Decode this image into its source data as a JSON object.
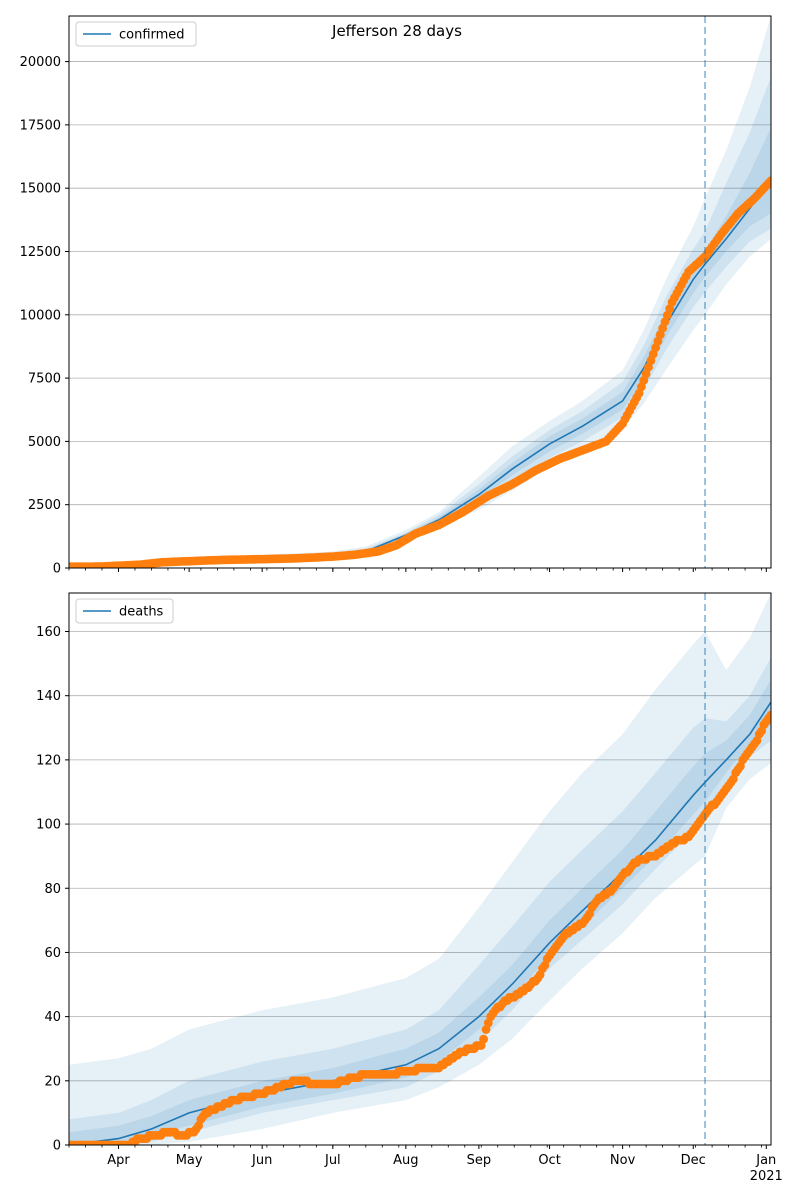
{
  "title": "Jefferson 28 days",
  "colors": {
    "model": "#1f77b4",
    "observed": "#ff7f0e",
    "band": "#1f77b4",
    "grid": "#b0b0b0"
  },
  "chart_data": [
    {
      "type": "line",
      "legend": "confirmed",
      "legend_loc": "upper-left",
      "grid": "y",
      "xlim": [
        "2020-03-11",
        "2021-01-03"
      ],
      "ylim": [
        0,
        21800
      ],
      "yticks": [
        0,
        2500,
        5000,
        7500,
        10000,
        12500,
        15000,
        17500,
        20000
      ],
      "ytick_labels": [
        "0",
        "2500",
        "5000",
        "7500",
        "10000",
        "12500",
        "15000",
        "17500",
        "20000"
      ],
      "forecast_start": "2020-12-06",
      "model": {
        "x": [
          "2020-03-11",
          "2020-04-01",
          "2020-05-01",
          "2020-06-01",
          "2020-07-01",
          "2020-07-15",
          "2020-08-01",
          "2020-08-15",
          "2020-09-01",
          "2020-09-15",
          "2020-10-01",
          "2020-10-15",
          "2020-11-01",
          "2020-11-10",
          "2020-11-20",
          "2020-12-01",
          "2020-12-06",
          "2020-12-15",
          "2020-12-25",
          "2021-01-03"
        ],
        "y": [
          50,
          80,
          250,
          380,
          480,
          650,
          1300,
          1900,
          2900,
          3900,
          4900,
          5600,
          6600,
          7900,
          9700,
          11400,
          12000,
          13000,
          14200,
          15400
        ],
        "bands": [
          {
            "lo": [
              0,
              40,
              150,
              250,
              330,
              450,
              1150,
              1600,
              2300,
              3050,
              4000,
              4600,
              5500,
              6500,
              7900,
              9400,
              10000,
              11200,
              12300,
              13000
            ],
            "hi": [
              120,
              150,
              370,
              520,
              650,
              850,
              1500,
              2200,
              3600,
              4800,
              5800,
              6600,
              7800,
              9400,
              11500,
              13500,
              14600,
              16500,
              19000,
              21800
            ]
          },
          {
            "lo": [
              10,
              55,
              190,
              300,
              390,
              540,
              1220,
              1720,
              2550,
              3400,
              4350,
              5000,
              5950,
              7050,
              8700,
              10300,
              10900,
              11900,
              12900,
              13400
            ],
            "hi": [
              90,
              120,
              320,
              460,
              580,
              770,
              1400,
              2100,
              3300,
              4400,
              5450,
              6200,
              7350,
              8800,
              10800,
              12600,
              13300,
              15200,
              17200,
              19400
            ]
          },
          {
            "lo": [
              25,
              65,
              215,
              335,
              430,
              590,
              1260,
              1800,
              2720,
              3650,
              4600,
              5300,
              6250,
              7450,
              9200,
              10850,
              11500,
              12500,
              13500,
              14000
            ],
            "hi": [
              75,
              100,
              290,
              425,
              535,
              715,
              1350,
              2000,
              3100,
              4150,
              5200,
              5900,
              6950,
              8350,
              10200,
              11950,
              12500,
              13900,
              15600,
              17400
            ]
          }
        ]
      },
      "observed": {
        "x": [
          "2020-03-11",
          "2020-03-25",
          "2020-04-10",
          "2020-04-20",
          "2020-05-01",
          "2020-05-15",
          "2020-06-01",
          "2020-06-15",
          "2020-07-01",
          "2020-07-10",
          "2020-07-20",
          "2020-07-28",
          "2020-08-05",
          "2020-08-15",
          "2020-08-25",
          "2020-09-05",
          "2020-09-15",
          "2020-09-25",
          "2020-10-05",
          "2020-10-15",
          "2020-10-25",
          "2020-11-01",
          "2020-11-08",
          "2020-11-15",
          "2020-11-22",
          "2020-11-29",
          "2020-12-06",
          "2020-12-13",
          "2020-12-20",
          "2020-12-27",
          "2021-01-03"
        ],
        "y": [
          50,
          60,
          130,
          230,
          270,
          320,
          350,
          380,
          450,
          520,
          650,
          900,
          1350,
          1700,
          2200,
          2850,
          3300,
          3850,
          4300,
          4650,
          5000,
          5700,
          6900,
          8700,
          10500,
          11700,
          12300,
          13200,
          14000,
          14600,
          15300
        ]
      }
    },
    {
      "type": "line",
      "legend": "deaths",
      "legend_loc": "upper-left",
      "grid": "y",
      "xlim": [
        "2020-03-11",
        "2021-01-03"
      ],
      "ylim": [
        0,
        172
      ],
      "yticks": [
        0,
        20,
        40,
        60,
        80,
        100,
        120,
        140,
        160
      ],
      "ytick_labels": [
        "0",
        "20",
        "40",
        "60",
        "80",
        "100",
        "120",
        "140",
        "160"
      ],
      "xticks": [
        "2020-04-01",
        "2020-05-01",
        "2020-06-01",
        "2020-07-01",
        "2020-08-01",
        "2020-09-01",
        "2020-10-01",
        "2020-11-01",
        "2020-12-01",
        "2021-01-01"
      ],
      "xtick_labels": [
        "Apr",
        "May",
        "Jun",
        "Jul",
        "Aug",
        "Sep",
        "Oct",
        "Nov",
        "Dec",
        "Jan"
      ],
      "xlabel_year": "2021",
      "forecast_start": "2020-12-06",
      "model": {
        "x": [
          "2020-03-11",
          "2020-04-01",
          "2020-04-15",
          "2020-05-01",
          "2020-06-01",
          "2020-07-01",
          "2020-08-01",
          "2020-08-15",
          "2020-09-01",
          "2020-09-15",
          "2020-10-01",
          "2020-10-15",
          "2020-11-01",
          "2020-11-15",
          "2020-12-01",
          "2020-12-06",
          "2020-12-15",
          "2020-12-25",
          "2021-01-03"
        ],
        "y": [
          0,
          2,
          5,
          10,
          16,
          20,
          25,
          30,
          40,
          50,
          63,
          73,
          85,
          95,
          109,
          113,
          120,
          128,
          138
        ],
        "bands": [
          {
            "lo": [
              0,
              0,
              0,
              1,
              5,
              10,
              14,
              18,
              25,
              33,
              45,
              55,
              66,
              77,
              87,
              90,
              105,
              114,
              119
            ],
            "hi": [
              25,
              27,
              30,
              36,
              42,
              46,
              52,
              58,
              74,
              88,
              104,
              116,
              128,
              142,
              156,
              160,
              148,
              158,
              172
            ]
          },
          {
            "lo": [
              0,
              0,
              1,
              4,
              10,
              14,
              18,
              23,
              32,
              42,
              55,
              64,
              75,
              86,
              98,
              102,
              112,
              121,
              126
            ],
            "hi": [
              8,
              10,
              14,
              20,
              26,
              30,
              36,
              42,
              56,
              68,
              82,
              92,
              104,
              116,
              130,
              133,
              132,
              140,
              152
            ]
          },
          {
            "lo": [
              0,
              1,
              3,
              6,
              12,
              16,
              21,
              26,
              36,
              46,
              59,
              68,
              80,
              90,
              103,
              107,
              116,
              125,
              131
            ],
            "hi": [
              4,
              6,
              9,
              14,
              20,
              24,
              30,
              35,
              46,
              56,
              70,
              80,
              92,
              104,
              118,
              122,
              126,
              134,
              145
            ]
          }
        ]
      },
      "observed": {
        "x": [
          "2020-03-11",
          "2020-03-25",
          "2020-04-05",
          "2020-04-10",
          "2020-04-17",
          "2020-04-22",
          "2020-04-29",
          "2020-05-03",
          "2020-05-08",
          "2020-05-14",
          "2020-05-20",
          "2020-05-26",
          "2020-06-01",
          "2020-06-08",
          "2020-06-15",
          "2020-06-25",
          "2020-07-01",
          "2020-07-15",
          "2020-07-25",
          "2020-08-01",
          "2020-08-10",
          "2020-08-15",
          "2020-08-20",
          "2020-08-28",
          "2020-09-02",
          "2020-09-06",
          "2020-09-12",
          "2020-09-18",
          "2020-09-22",
          "2020-09-26",
          "2020-10-01",
          "2020-10-08",
          "2020-10-15",
          "2020-10-22",
          "2020-10-27",
          "2020-11-01",
          "2020-11-08",
          "2020-11-15",
          "2020-11-22",
          "2020-11-29",
          "2020-12-06",
          "2020-12-12",
          "2020-12-17",
          "2020-12-23",
          "2020-12-28",
          "2021-01-01",
          "2021-01-03"
        ],
        "y": [
          0,
          0,
          0,
          2,
          3,
          4,
          3,
          4,
          10,
          12,
          14,
          15,
          16,
          18,
          20,
          19,
          19,
          22,
          22,
          23,
          24,
          24,
          27,
          30,
          31,
          40,
          45,
          47,
          49,
          52,
          59,
          66,
          69,
          77,
          79,
          84,
          89,
          90,
          94,
          96,
          103,
          108,
          113,
          121,
          126,
          132,
          134
        ]
      }
    }
  ]
}
